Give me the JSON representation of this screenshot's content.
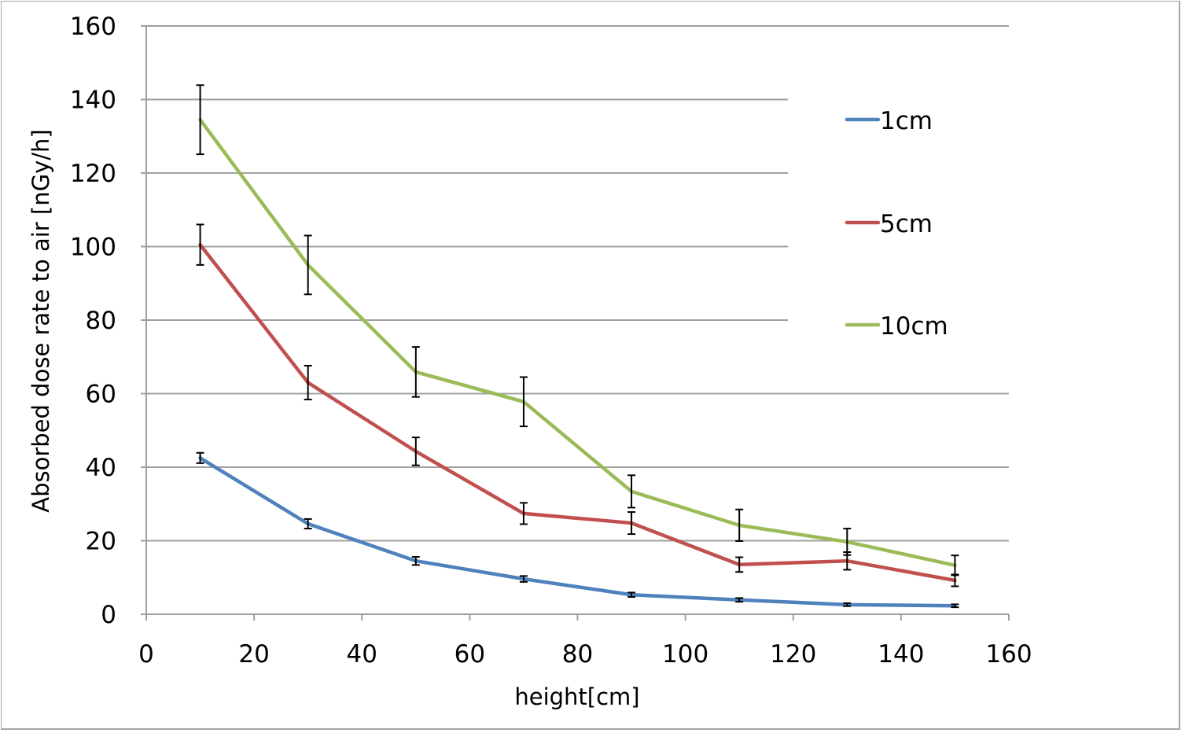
{
  "chart_data": {
    "type": "line",
    "title": "",
    "xlabel": "height[cm]",
    "ylabel": "Absorbed dose rate to air [nGy/h]",
    "xlim": [
      0,
      160
    ],
    "ylim": [
      0,
      160
    ],
    "xticks": [
      0,
      20,
      40,
      60,
      80,
      100,
      120,
      140,
      160
    ],
    "yticks": [
      0,
      20,
      40,
      60,
      80,
      100,
      120,
      140,
      160
    ],
    "grid": "horizontal",
    "legend_position": "right",
    "x": [
      10,
      30,
      50,
      70,
      90,
      110,
      130,
      150
    ],
    "series": [
      {
        "name": "1cm",
        "color": "#4f81bd",
        "values": [
          42.5,
          24.6,
          14.5,
          9.6,
          5.3,
          3.9,
          2.6,
          2.3
        ],
        "error": [
          1.4,
          1.3,
          1.1,
          0.8,
          0.6,
          0.5,
          0.4,
          0.4
        ]
      },
      {
        "name": "5cm",
        "color": "#c0504d",
        "values": [
          100.5,
          63.0,
          44.3,
          27.4,
          24.8,
          13.5,
          14.5,
          9.2
        ],
        "error": [
          5.5,
          4.6,
          3.8,
          2.9,
          3.0,
          2.0,
          2.4,
          1.6
        ]
      },
      {
        "name": "10cm",
        "color": "#9bbb59",
        "values": [
          134.5,
          95.0,
          65.9,
          57.8,
          33.4,
          24.2,
          19.7,
          13.3
        ],
        "error": [
          9.4,
          8.0,
          6.8,
          6.7,
          4.4,
          4.3,
          3.6,
          2.7
        ]
      }
    ]
  }
}
